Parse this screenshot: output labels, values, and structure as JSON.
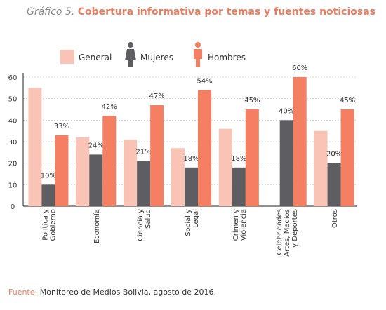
{
  "title": {
    "prefix": "Gráfico 5.",
    "text": "Cobertura informativa por temas y fuentes noticiosas"
  },
  "source": {
    "label": "Fuente:",
    "text": "Monitoreo de Medios Bolivia, agosto de 2016."
  },
  "chart_data": {
    "type": "bar",
    "title": "Cobertura informativa por temas y fuentes noticiosas",
    "xlabel": "",
    "ylabel": "",
    "ylim": [
      0,
      60
    ],
    "yticks": [
      "0",
      "10",
      "20",
      "30",
      "40",
      "50",
      "60"
    ],
    "grid": true,
    "legend_position": "top",
    "categories": [
      [
        "Política y",
        "Gobierno"
      ],
      [
        "Economía"
      ],
      [
        "Ciencia y",
        "Salud"
      ],
      [
        "Social y",
        "Legal"
      ],
      [
        "Crimen y",
        "Violencia"
      ],
      [
        "Celebridades",
        "Artes, Medios",
        "y Deportes"
      ],
      [
        "Otros"
      ]
    ],
    "series": [
      {
        "name": "General",
        "color": "#f9c4b6",
        "values": [
          55,
          32,
          31,
          27,
          36,
          0,
          35
        ],
        "labels": [
          "",
          "",
          "",
          "",
          "",
          "",
          ""
        ]
      },
      {
        "name": "Mujeres",
        "color": "#5e5e62",
        "values": [
          10,
          24,
          21,
          18,
          18,
          40,
          20
        ],
        "labels": [
          "10%",
          "24%",
          "21%",
          "18%",
          "18%",
          "40%",
          "20%"
        ]
      },
      {
        "name": "Hombres",
        "color": "#f47f62",
        "values": [
          33,
          42,
          47,
          54,
          45,
          60,
          45
        ],
        "labels": [
          "33%",
          "42%",
          "47%",
          "54%",
          "45%",
          "60%",
          "45%"
        ]
      }
    ]
  }
}
